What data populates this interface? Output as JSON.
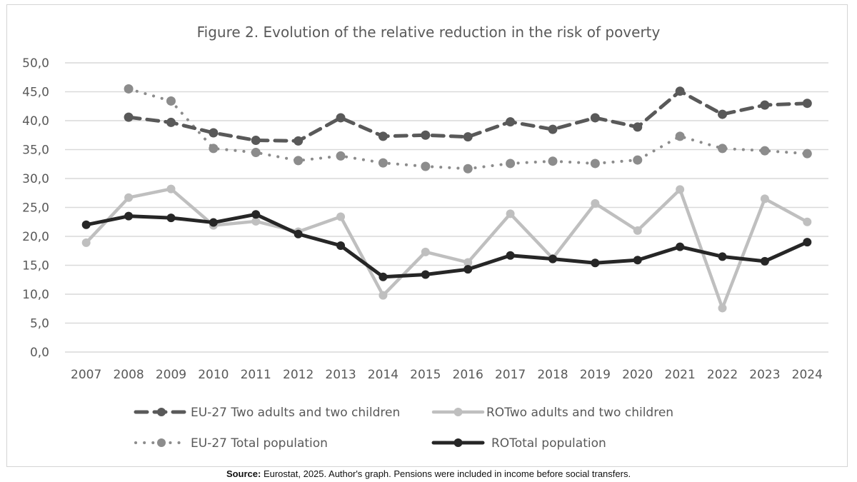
{
  "chart_data": {
    "type": "line",
    "title": "Figure 2. Evolution of the relative reduction in the risk of poverty",
    "xlabel": "",
    "ylabel": "",
    "ylim": [
      0,
      50
    ],
    "yticks": [
      "0,0",
      "5,0",
      "10,0",
      "15,0",
      "20,0",
      "25,0",
      "30,0",
      "35,0",
      "40,0",
      "45,0",
      "50,0"
    ],
    "ytick_values": [
      0,
      5,
      10,
      15,
      20,
      25,
      30,
      35,
      40,
      45,
      50
    ],
    "grid": true,
    "legend_position": "bottom",
    "categories": [
      "2007",
      "2008",
      "2009",
      "2010",
      "2011",
      "2012",
      "2013",
      "2014",
      "2015",
      "2016",
      "2017",
      "2018",
      "2019",
      "2020",
      "2021",
      "2022",
      "2023",
      "2024"
    ],
    "series": [
      {
        "name": "EU-27 Two adults and two children",
        "style": "dashed",
        "color": "#595959",
        "values": [
          null,
          40.6,
          39.7,
          37.9,
          36.6,
          36.5,
          40.5,
          37.3,
          37.5,
          37.2,
          39.8,
          38.5,
          40.5,
          38.9,
          45.1,
          41.1,
          42.7,
          43.0
        ]
      },
      {
        "name": "ROTwo adults and two children",
        "style": "solid",
        "color": "#bfbfbf",
        "values": [
          18.9,
          26.7,
          28.2,
          21.9,
          22.6,
          20.8,
          23.4,
          9.8,
          17.3,
          15.5,
          23.9,
          16.2,
          25.7,
          21.0,
          28.1,
          7.6,
          26.5,
          22.5
        ]
      },
      {
        "name": "EU-27 Total population",
        "style": "dotted",
        "color": "#8c8c8c",
        "values": [
          null,
          45.5,
          43.4,
          35.2,
          34.5,
          33.1,
          33.9,
          32.7,
          32.1,
          31.7,
          32.6,
          33.0,
          32.6,
          33.2,
          37.3,
          35.2,
          34.8,
          34.3
        ]
      },
      {
        "name": "ROTotal population",
        "style": "solid",
        "color": "#262626",
        "values": [
          22.0,
          23.5,
          23.2,
          22.4,
          23.8,
          20.4,
          18.4,
          13.0,
          13.4,
          14.3,
          16.7,
          16.1,
          15.4,
          15.9,
          18.2,
          16.5,
          15.7,
          19.0
        ]
      }
    ]
  },
  "source": {
    "label": "Source:",
    "text": " Eurostat, 2025. Author's graph. Pensions were included in income before social transfers."
  },
  "colors": {
    "gridline": "#d9d9d9",
    "text": "#595959",
    "frame": "#d4d4d4"
  }
}
